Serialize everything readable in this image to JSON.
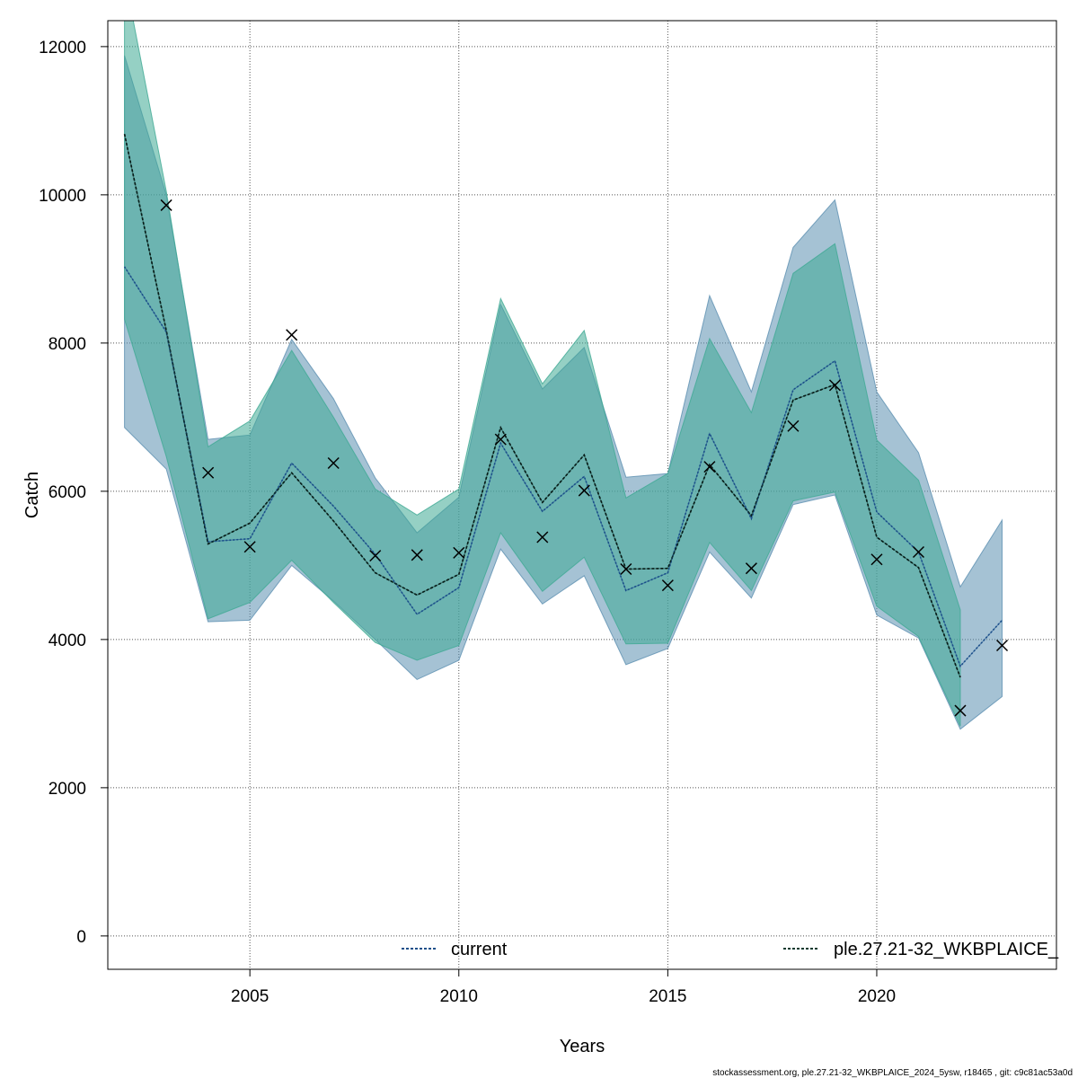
{
  "chart_data": {
    "type": "line",
    "title": "",
    "xlabel": "Years",
    "ylabel": "Catch",
    "xlim": [
      2001.6,
      2024.3
    ],
    "ylim": [
      -450,
      12350
    ],
    "x_ticks": [
      2005,
      2010,
      2015,
      2020
    ],
    "y_ticks": [
      0,
      2000,
      4000,
      6000,
      8000,
      10000,
      12000
    ],
    "grid": true,
    "colors": {
      "current_fill": "#5b8fb0",
      "current_line": "#1b4f8a",
      "wkb_fill": "#3ea994",
      "wkb_line": "#0b3b30",
      "observed": "#000000"
    },
    "series": [
      {
        "name": "current",
        "x": [
          2002,
          2003,
          2004,
          2005,
          2006,
          2007,
          2008,
          2009,
          2010,
          2011,
          2012,
          2013,
          2014,
          2015,
          2016,
          2017,
          2018,
          2019,
          2020,
          2021,
          2022,
          2023
        ],
        "y": [
          9030,
          8150,
          5320,
          5360,
          6380,
          5800,
          5150,
          4340,
          4700,
          6650,
          5730,
          6200,
          4660,
          4900,
          6780,
          5630,
          7370,
          7760,
          5720,
          5180,
          3640,
          4260
        ],
        "lower": [
          6860,
          6300,
          4240,
          4260,
          5000,
          4520,
          4000,
          3460,
          3720,
          5220,
          4480,
          4860,
          3660,
          3880,
          5180,
          4560,
          5820,
          5950,
          4330,
          4020,
          2790,
          3230
        ],
        "upper": [
          11880,
          10000,
          6700,
          6760,
          8050,
          7250,
          6180,
          5440,
          5920,
          8520,
          7380,
          7940,
          6190,
          6240,
          8640,
          7340,
          9290,
          9930,
          7340,
          6520,
          4710,
          5610
        ]
      },
      {
        "name": "ple.27.21-32_WKBPLAICE_",
        "x": [
          2002,
          2003,
          2004,
          2005,
          2006,
          2007,
          2008,
          2009,
          2010,
          2011,
          2012,
          2013,
          2014,
          2015,
          2016,
          2017,
          2018,
          2019,
          2020,
          2021,
          2022
        ],
        "y": [
          10820,
          8170,
          5290,
          5570,
          6250,
          5600,
          4900,
          4600,
          4880,
          6860,
          5850,
          6490,
          4950,
          4960,
          6360,
          5670,
          7230,
          7440,
          5380,
          4970,
          3490
        ],
        "lower": [
          8320,
          6470,
          4280,
          4500,
          5070,
          4500,
          3960,
          3720,
          3920,
          5440,
          4650,
          5110,
          3940,
          3950,
          5310,
          4660,
          5870,
          5990,
          4450,
          4040,
          2830
        ],
        "upper": [
          12960,
          10050,
          6600,
          6950,
          7900,
          7000,
          6030,
          5680,
          6030,
          8600,
          7450,
          8170,
          5910,
          6240,
          8060,
          7060,
          8940,
          9340,
          6690,
          6150,
          4400
        ]
      }
    ],
    "observed": {
      "name": "observed",
      "x": [
        2003,
        2004,
        2005,
        2006,
        2007,
        2008,
        2009,
        2010,
        2011,
        2012,
        2013,
        2014,
        2015,
        2016,
        2017,
        2018,
        2019,
        2020,
        2021,
        2022,
        2023
      ],
      "y": [
        9860,
        6250,
        5250,
        8110,
        6380,
        5130,
        5140,
        5170,
        6700,
        5380,
        6010,
        4950,
        4730,
        6330,
        4960,
        6880,
        7430,
        5080,
        5180,
        3040,
        3920
      ]
    },
    "legend": {
      "placement": "bottom",
      "entries": [
        "current",
        "ple.27.21-32_WKBPLAICE_"
      ]
    },
    "footer": "stockassessment.org, ple.27.21-32_WKBPLAICE_2024_5ysw, r18465 , git: c9c81ac53a0d"
  }
}
